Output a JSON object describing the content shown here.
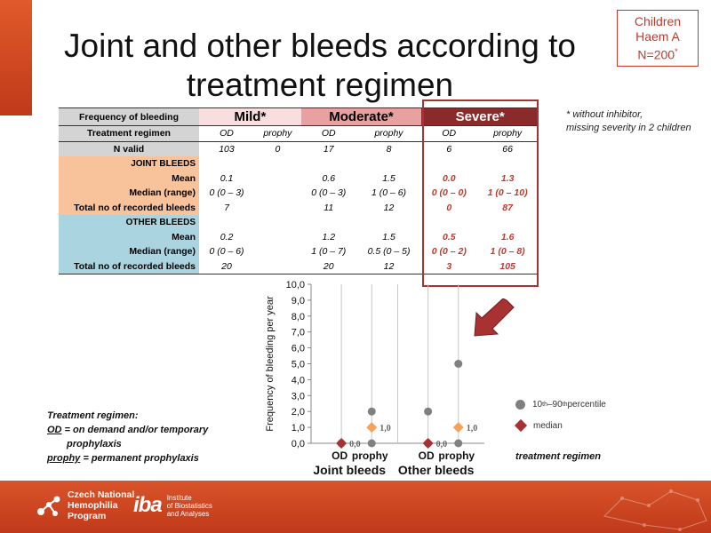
{
  "title": "Joint and other bleeds according to treatment regimen",
  "cohort": {
    "line1": "Children",
    "line2": "Haem A",
    "line3": "N=200",
    "sup": "*"
  },
  "footnote": {
    "line1": "* without inhibitor,",
    "line2": "missing severity in 2 children"
  },
  "table": {
    "row_freq": "Frequency of bleeding",
    "cat_mild": "Mild*",
    "cat_moderate": "Moderate*",
    "cat_severe": "Severe*",
    "row_regimen": "Treatment regimen",
    "od": "OD",
    "prophy": "prophy",
    "row_nvalid": "N valid",
    "nvalid": [
      "103",
      "0",
      "17",
      "8",
      "6",
      "66"
    ],
    "joint": {
      "section": "JOINT BLEEDS",
      "mean_label": "Mean",
      "mean": [
        "0.1",
        "",
        "0.6",
        "1.5",
        "0.0",
        "1.3"
      ],
      "median_label": "Median (range)",
      "median": [
        "0 (0 – 3)",
        "",
        "0 (0 – 3)",
        "1 (0 – 6)",
        "0 (0 – 0)",
        "1 (0 – 10)"
      ],
      "total_label": "Total no of recorded bleeds",
      "total": [
        "7",
        "",
        "11",
        "12",
        "0",
        "87"
      ]
    },
    "other": {
      "section": "OTHER BLEEDS",
      "mean_label": "Mean",
      "mean": [
        "0.2",
        "",
        "1.2",
        "1.5",
        "0.5",
        "1.6"
      ],
      "median_label": "Median (range)",
      "median": [
        "0 (0 – 6)",
        "",
        "1 (0 – 7)",
        "0.5 (0 – 5)",
        "0 (0 – 2)",
        "1 (0 – 8)"
      ],
      "total_label": "Total no of recorded bleeds",
      "total": [
        "20",
        "",
        "20",
        "12",
        "3",
        "105"
      ]
    }
  },
  "chart_data": {
    "type": "scatter",
    "ylabel": "Frequency of bleeding per year",
    "ylim": [
      0,
      10
    ],
    "yticks": [
      "0,0",
      "1,0",
      "2,0",
      "3,0",
      "4,0",
      "5,0",
      "6,0",
      "7,0",
      "8,0",
      "9,0",
      "10,0"
    ],
    "groups": [
      {
        "name": "Joint bleeds",
        "od": "OD",
        "prophy": "prophy",
        "od_median": 0,
        "od_p10": 0,
        "od_p90": 0,
        "od_label": "0,0",
        "prophy_median": 1,
        "prophy_p10": 0,
        "prophy_p90": 2,
        "prophy_label": "1,0"
      },
      {
        "name": "Other bleeds",
        "od": "OD",
        "prophy": "prophy",
        "od_median": 0,
        "od_p10": 0,
        "od_p90": 2,
        "od_label": "0,0",
        "prophy_median": 1,
        "prophy_p10": 0,
        "prophy_p90": 5,
        "prophy_label": "1,0"
      }
    ],
    "legend": {
      "percentile_pre": "10",
      "percentile_mid": "th",
      "percentile_dash": "–90",
      "percentile_post": " percentile",
      "median": "median"
    },
    "colors": {
      "percentile": "#808080",
      "median_od": "#a83232",
      "median_prophy": "#f5a25a"
    }
  },
  "regimen_note": {
    "heading": "Treatment regimen:",
    "od_abbr": "OD",
    "od_text": " = on demand and/or temporary",
    "od_text2": "prophylaxis",
    "prophy_abbr": "prophy",
    "prophy_text": " = permanent prophylaxis"
  },
  "xaxis_title": "treatment regimen",
  "footer": {
    "org1_line1": "Czech National",
    "org1_line2": "Hemophilia",
    "org1_line3": "Program",
    "org2_logo": "iba",
    "org2_line1": "Institute",
    "org2_line2": "of Biostatistics",
    "org2_line3": "and Analyses"
  }
}
